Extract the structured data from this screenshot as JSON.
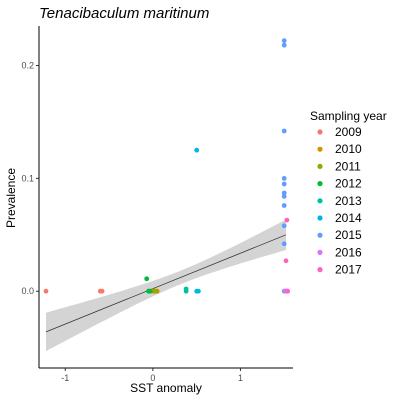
{
  "chart_data": {
    "type": "scatter",
    "title": "Tenacibaculum maritinum",
    "xlabel": "SST anomaly",
    "ylabel": "Prevalence",
    "xlim": [
      -1.3,
      1.6
    ],
    "ylim": [
      -0.068,
      0.235
    ],
    "xticks": [
      -1,
      0,
      1
    ],
    "yticks": [
      0.0,
      0.1,
      0.2
    ],
    "xtick_labels": [
      "-1",
      "0",
      "1"
    ],
    "ytick_labels": [
      "0.0",
      "0.1",
      "0.2"
    ],
    "grid": false,
    "legend": {
      "title": "Sampling year",
      "position": "right"
    },
    "series": [
      {
        "name": "2009",
        "color": "#F8766D",
        "points": [
          [
            -1.22,
            0.0
          ],
          [
            -0.6,
            0.0
          ],
          [
            -0.58,
            0.0
          ]
        ]
      },
      {
        "name": "2010",
        "color": "#D39200",
        "points": [
          [
            0.0,
            0.0
          ],
          [
            0.02,
            0.0
          ],
          [
            0.05,
            0.0
          ]
        ]
      },
      {
        "name": "2011",
        "color": "#93AA00",
        "points": [
          [
            -0.03,
            0.0
          ],
          [
            0.03,
            0.0
          ]
        ]
      },
      {
        "name": "2012",
        "color": "#00BA38",
        "points": [
          [
            -0.07,
            0.011
          ],
          [
            -0.05,
            0.0
          ],
          [
            -0.03,
            0.0
          ]
        ]
      },
      {
        "name": "2013",
        "color": "#00C19F",
        "points": [
          [
            0.38,
            0.0
          ],
          [
            0.38,
            0.002
          ]
        ]
      },
      {
        "name": "2014",
        "color": "#00B9E3",
        "points": [
          [
            0.5,
            0.125
          ],
          [
            0.5,
            0.0
          ],
          [
            0.52,
            0.0
          ]
        ]
      },
      {
        "name": "2015",
        "color": "#619CFF",
        "points": [
          [
            1.5,
            0.222
          ],
          [
            1.5,
            0.218
          ],
          [
            1.5,
            0.142
          ],
          [
            1.5,
            0.1
          ],
          [
            1.5,
            0.095
          ],
          [
            1.5,
            0.087
          ],
          [
            1.5,
            0.084
          ],
          [
            1.5,
            0.076
          ],
          [
            1.5,
            0.058
          ],
          [
            1.5,
            0.042
          ],
          [
            1.5,
            0.0
          ],
          [
            1.52,
            0.0
          ]
        ]
      },
      {
        "name": "2016",
        "color": "#DB72FB",
        "points": [
          [
            1.51,
            0.0
          ],
          [
            1.53,
            0.0
          ]
        ]
      },
      {
        "name": "2017",
        "color": "#FF61C3",
        "points": [
          [
            1.53,
            0.063
          ],
          [
            1.52,
            0.027
          ],
          [
            1.54,
            0.0
          ]
        ]
      }
    ],
    "trend_line": {
      "color": "#333333",
      "x": [
        -1.22,
        1.52
      ],
      "y": [
        -0.036,
        0.05
      ],
      "ci_lower": [
        -0.053,
        0.037
      ],
      "ci_upper": [
        -0.019,
        0.064
      ],
      "ci_color": "#cccccc"
    }
  }
}
